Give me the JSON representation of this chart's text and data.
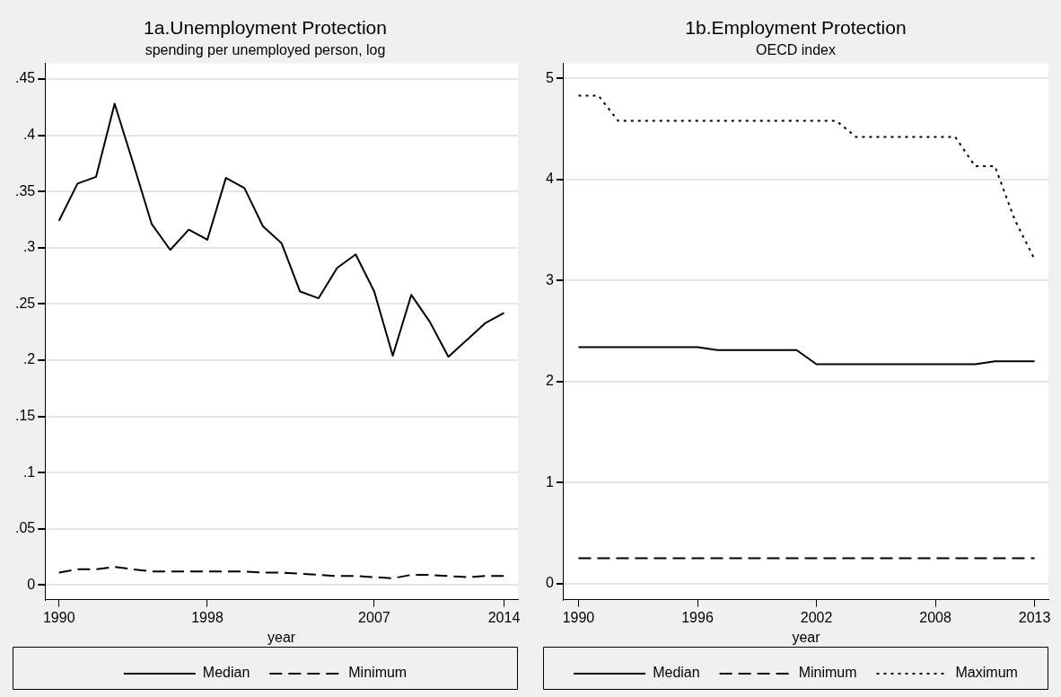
{
  "chart_data": [
    {
      "type": "line",
      "title": "1a.Unemployment Protection",
      "subtitle": "spending per unemployed person, log",
      "xlabel": "year",
      "x": [
        1990,
        1991,
        1992,
        1993,
        1994,
        1995,
        1996,
        1997,
        1998,
        1999,
        2000,
        2001,
        2002,
        2003,
        2004,
        2005,
        2006,
        2007,
        2008,
        2009,
        2010,
        2011,
        2012,
        2013,
        2014
      ],
      "series": [
        {
          "name": "Median",
          "color": "#000000",
          "line_style": "solid",
          "values": [
            0.324,
            0.357,
            0.363,
            0.428,
            0.375,
            0.321,
            0.298,
            0.316,
            0.307,
            0.362,
            0.353,
            0.319,
            0.304,
            0.261,
            0.255,
            0.282,
            0.294,
            0.261,
            0.204,
            0.258,
            0.234,
            0.203,
            0.218,
            0.233,
            0.242
          ]
        },
        {
          "name": "Minimum",
          "color": "#000000",
          "line_style": "dashed",
          "values": [
            0.011,
            0.014,
            0.014,
            0.016,
            0.014,
            0.012,
            0.012,
            0.012,
            0.012,
            0.012,
            0.012,
            0.011,
            0.011,
            0.01,
            0.009,
            0.008,
            0.008,
            0.007,
            0.006,
            0.009,
            0.009,
            0.008,
            0.007,
            0.008,
            0.008
          ]
        }
      ],
      "xlim": [
        1989.25,
        2014.75
      ],
      "xticks": [
        1990,
        1998,
        2007,
        2014
      ],
      "ylim": [
        -0.013,
        0.464
      ],
      "yticks": [
        0,
        {
          "value": 0.05,
          "label": ".05"
        },
        {
          "value": 0.1,
          "label": ".1"
        },
        {
          "value": 0.15,
          "label": ".15"
        },
        {
          "value": 0.2,
          "label": ".2"
        },
        {
          "value": 0.25,
          "label": ".25"
        },
        {
          "value": 0.3,
          "label": ".3"
        },
        {
          "value": 0.35,
          "label": ".35"
        },
        {
          "value": 0.4,
          "label": ".4"
        },
        {
          "value": 0.45,
          "label": ".45"
        }
      ],
      "grid": "y",
      "legend": "bottom",
      "marker": "none"
    },
    {
      "type": "line",
      "title": "1b.Employment Protection",
      "subtitle": "OECD index",
      "xlabel": "year",
      "x": [
        1990,
        1991,
        1992,
        1993,
        1994,
        1995,
        1996,
        1997,
        1998,
        1999,
        2000,
        2001,
        2002,
        2003,
        2004,
        2005,
        2006,
        2007,
        2008,
        2009,
        2010,
        2011,
        2012,
        2013
      ],
      "series": [
        {
          "name": "Median",
          "color": "#000000",
          "line_style": "solid",
          "values": [
            2.34,
            2.34,
            2.34,
            2.34,
            2.34,
            2.34,
            2.34,
            2.31,
            2.31,
            2.31,
            2.31,
            2.31,
            2.17,
            2.17,
            2.17,
            2.17,
            2.17,
            2.17,
            2.17,
            2.17,
            2.17,
            2.2,
            2.2,
            2.2
          ]
        },
        {
          "name": "Minimum",
          "color": "#000000",
          "line_style": "dashed",
          "values": [
            0.25,
            0.25,
            0.25,
            0.25,
            0.25,
            0.25,
            0.25,
            0.25,
            0.25,
            0.25,
            0.25,
            0.25,
            0.25,
            0.25,
            0.25,
            0.25,
            0.25,
            0.25,
            0.25,
            0.25,
            0.25,
            0.25,
            0.25,
            0.25
          ]
        },
        {
          "name": "Maximum",
          "color": "#000000",
          "line_style": "dotted",
          "values": [
            4.83,
            4.83,
            4.58,
            4.58,
            4.58,
            4.58,
            4.58,
            4.58,
            4.58,
            4.58,
            4.58,
            4.58,
            4.58,
            4.58,
            4.42,
            4.42,
            4.42,
            4.42,
            4.42,
            4.42,
            4.13,
            4.13,
            3.6,
            3.21
          ]
        }
      ],
      "xlim": [
        1989.25,
        2013.7
      ],
      "xticks": [
        1990,
        1996,
        2002,
        2008,
        2013
      ],
      "ylim": [
        -0.16,
        5.15
      ],
      "yticks": [
        0,
        1,
        2,
        3,
        4,
        5
      ],
      "grid": "y",
      "legend": "bottom",
      "marker": "none"
    }
  ]
}
